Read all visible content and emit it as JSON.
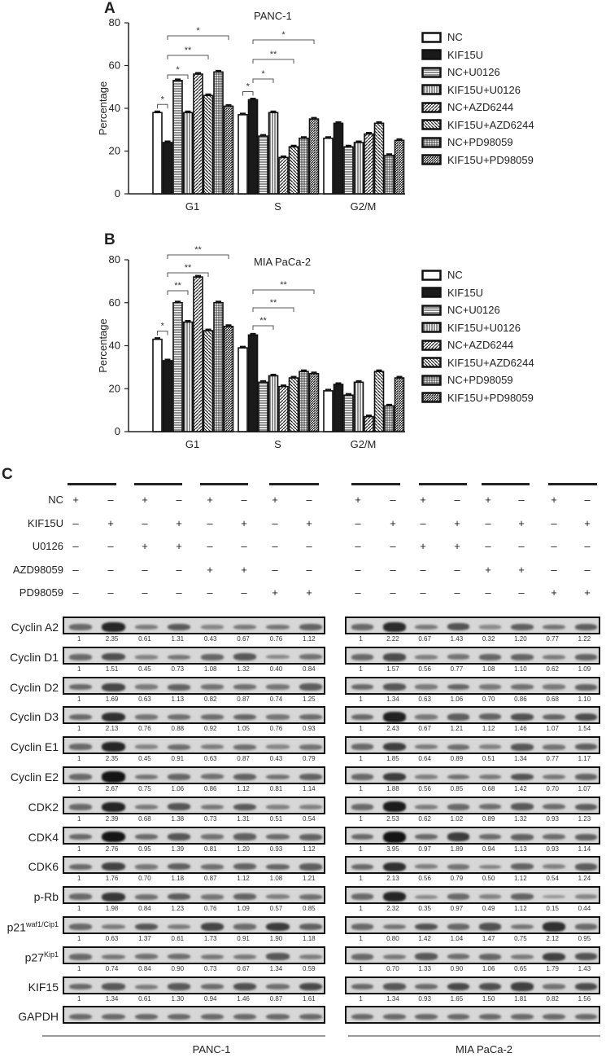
{
  "figure": {
    "panels": {
      "a": "A",
      "b": "B",
      "c": "C"
    }
  },
  "legend": [
    {
      "label": "NC",
      "pattern": "empty"
    },
    {
      "label": "KIF15U",
      "pattern": "solid"
    },
    {
      "label": "NC+U0126",
      "pattern": "hlines"
    },
    {
      "label": "KIF15U+U0126",
      "pattern": "vlines"
    },
    {
      "label": "NC+AZD6244",
      "pattern": "diag-up"
    },
    {
      "label": "KIF15U+AZD6244",
      "pattern": "diag-down"
    },
    {
      "label": "NC+PD98059",
      "pattern": "grid"
    },
    {
      "label": "KIF15U+PD98059",
      "pattern": "diag-dense"
    }
  ],
  "chart_data": [
    {
      "type": "bar",
      "title": "PANC-1",
      "panel": "A",
      "xlabel": "",
      "ylabel": "Percentage",
      "ylim": [
        0,
        80
      ],
      "yticks": [
        0,
        20,
        40,
        60,
        80
      ],
      "categories": [
        "G1",
        "S",
        "G2/M"
      ],
      "series": [
        {
          "name": "NC",
          "values": [
            38,
            37,
            26
          ]
        },
        {
          "name": "KIF15U",
          "values": [
            24,
            44,
            33
          ]
        },
        {
          "name": "NC+U0126",
          "values": [
            53,
            27,
            22
          ]
        },
        {
          "name": "KIF15U+U0126",
          "values": [
            38,
            38,
            24
          ]
        },
        {
          "name": "NC+AZD6244",
          "values": [
            56,
            17,
            28
          ]
        },
        {
          "name": "KIF15U+AZD6244",
          "values": [
            46,
            22,
            33
          ]
        },
        {
          "name": "NC+PD98059",
          "values": [
            57,
            26,
            18
          ]
        },
        {
          "name": "KIF15U+PD98059",
          "values": [
            41,
            35,
            25
          ]
        }
      ],
      "significance": [
        {
          "group": "G1",
          "from": 0,
          "to": 1,
          "label": "*"
        },
        {
          "group": "G1",
          "from": 1,
          "to": 3,
          "label": "*"
        },
        {
          "group": "G1",
          "from": 1,
          "to": 5,
          "label": "**"
        },
        {
          "group": "G1",
          "from": 1,
          "to": 7,
          "label": "*"
        },
        {
          "group": "S",
          "from": 0,
          "to": 1,
          "label": "*"
        },
        {
          "group": "S",
          "from": 1,
          "to": 3,
          "label": "*"
        },
        {
          "group": "S",
          "from": 1,
          "to": 5,
          "label": "**"
        },
        {
          "group": "S",
          "from": 1,
          "to": 7,
          "label": "*"
        }
      ],
      "grid": false,
      "legend_position": "right"
    },
    {
      "type": "bar",
      "title": "MIA PaCa-2",
      "panel": "B",
      "xlabel": "",
      "ylabel": "Percentage",
      "ylim": [
        0,
        80
      ],
      "yticks": [
        0,
        20,
        40,
        60,
        80
      ],
      "categories": [
        "G1",
        "S",
        "G2/M"
      ],
      "series": [
        {
          "name": "NC",
          "values": [
            43,
            39,
            19
          ]
        },
        {
          "name": "KIF15U",
          "values": [
            33,
            45,
            22
          ]
        },
        {
          "name": "NC+U0126",
          "values": [
            60,
            23,
            17
          ]
        },
        {
          "name": "KIF15U+U0126",
          "values": [
            51,
            26,
            23
          ]
        },
        {
          "name": "NC+AZD6244",
          "values": [
            72,
            21,
            7
          ]
        },
        {
          "name": "KIF15U+AZD6244",
          "values": [
            47,
            25,
            28
          ]
        },
        {
          "name": "NC+PD98059",
          "values": [
            60,
            28,
            12
          ]
        },
        {
          "name": "KIF15U+PD98059",
          "values": [
            49,
            27,
            25
          ]
        }
      ],
      "significance": [
        {
          "group": "G1",
          "from": 0,
          "to": 1,
          "label": "*"
        },
        {
          "group": "G1",
          "from": 1,
          "to": 3,
          "label": "**"
        },
        {
          "group": "G1",
          "from": 1,
          "to": 5,
          "label": "**"
        },
        {
          "group": "G1",
          "from": 1,
          "to": 7,
          "label": "**"
        },
        {
          "group": "S",
          "from": 1,
          "to": 3,
          "label": "**"
        },
        {
          "group": "S",
          "from": 1,
          "to": 5,
          "label": "**"
        },
        {
          "group": "S",
          "from": 1,
          "to": 7,
          "label": "**"
        }
      ],
      "grid": false,
      "legend_position": "right"
    },
    {
      "type": "table",
      "title": "Western blot relative quantification",
      "panel": "C",
      "conditions": {
        "rows": [
          "NC",
          "KIF15U",
          "U0126",
          "AZD98059",
          "PD98059"
        ],
        "lanes": [
          [
            "+",
            "-",
            "-",
            "-",
            "-"
          ],
          [
            "-",
            "+",
            "-",
            "-",
            "-"
          ],
          [
            "+",
            "-",
            "+",
            "-",
            "-"
          ],
          [
            "-",
            "+",
            "+",
            "-",
            "-"
          ],
          [
            "+",
            "-",
            "-",
            "+",
            "-"
          ],
          [
            "-",
            "+",
            "-",
            "+",
            "-"
          ],
          [
            "+",
            "-",
            "-",
            "-",
            "+"
          ],
          [
            "-",
            "+",
            "-",
            "-",
            "+"
          ]
        ]
      },
      "cell_lines": [
        "PANC-1",
        "MIA PaCa-2"
      ],
      "proteins": [
        {
          "name": "Cyclin A2",
          "sup": "",
          "panc1": [
            "1",
            "2.35",
            "0.61",
            "1.31",
            "0.43",
            "0.67",
            "0.76",
            "1.12"
          ],
          "mia": [
            "1",
            "2.22",
            "0.67",
            "1.43",
            "0.32",
            "1.20",
            "0.77",
            "1.22"
          ]
        },
        {
          "name": "Cyclin D1",
          "sup": "",
          "panc1": [
            "1",
            "1.51",
            "0.45",
            "0.73",
            "1.08",
            "1.32",
            "0.40",
            "0.84"
          ],
          "mia": [
            "1",
            "1.57",
            "0.56",
            "0.77",
            "1.08",
            "1.10",
            "0.62",
            "1.09"
          ]
        },
        {
          "name": "Cyclin D2",
          "sup": "",
          "panc1": [
            "1",
            "1.69",
            "0.63",
            "1.13",
            "0.82",
            "0.87",
            "0.74",
            "1.25"
          ],
          "mia": [
            "1",
            "1.34",
            "0.63",
            "1.06",
            "0.70",
            "0.86",
            "0.68",
            "1.10"
          ]
        },
        {
          "name": "Cyclin D3",
          "sup": "",
          "panc1": [
            "1",
            "2.13",
            "0.76",
            "0.88",
            "0.92",
            "1.05",
            "0.76",
            "0.93"
          ],
          "mia": [
            "1",
            "2.43",
            "0.67",
            "1.21",
            "1.12",
            "1.46",
            "1.07",
            "1.54"
          ]
        },
        {
          "name": "Cyclin E1",
          "sup": "",
          "panc1": [
            "1",
            "2.35",
            "0.45",
            "0.91",
            "0.63",
            "0.87",
            "0.43",
            "0.79"
          ],
          "mia": [
            "1",
            "1.85",
            "0.64",
            "0.89",
            "0.51",
            "1.34",
            "0.77",
            "1.17"
          ]
        },
        {
          "name": "Cyclin E2",
          "sup": "",
          "panc1": [
            "1",
            "2.67",
            "0.75",
            "1.06",
            "0.86",
            "1.12",
            "0.81",
            "1.14"
          ],
          "mia": [
            "1",
            "1.88",
            "0.56",
            "0.85",
            "0.68",
            "1.42",
            "0.70",
            "1.07"
          ]
        },
        {
          "name": "CDK2",
          "sup": "",
          "panc1": [
            "1",
            "2.39",
            "0.68",
            "1.38",
            "0.73",
            "1.31",
            "0.51",
            "0.54"
          ],
          "mia": [
            "1",
            "2.53",
            "0.62",
            "1.02",
            "0.89",
            "1.32",
            "0.93",
            "1.23"
          ]
        },
        {
          "name": "CDK4",
          "sup": "",
          "panc1": [
            "1",
            "2.76",
            "0.95",
            "1.39",
            "0.81",
            "1.20",
            "0.93",
            "1.12"
          ],
          "mia": [
            "1",
            "3.95",
            "0.97",
            "1.89",
            "0.94",
            "1.13",
            "0.93",
            "1.14"
          ]
        },
        {
          "name": "CDK6",
          "sup": "",
          "panc1": [
            "1",
            "1.76",
            "0.70",
            "1.18",
            "0.87",
            "1.12",
            "1.08",
            "1.21"
          ],
          "mia": [
            "1",
            "2.13",
            "0.56",
            "0.79",
            "0.50",
            "1.12",
            "0.54",
            "1.24"
          ]
        },
        {
          "name": "p-Rb",
          "sup": "",
          "panc1": [
            "1",
            "1.98",
            "0.84",
            "1.23",
            "0.76",
            "1.09",
            "0.57",
            "0.85"
          ],
          "mia": [
            "1",
            "2.32",
            "0.35",
            "0.97",
            "0.49",
            "1.12",
            "0.15",
            "0.44"
          ]
        },
        {
          "name": "p21",
          "sup": "waf1/Cip1",
          "panc1": [
            "1",
            "0.63",
            "1.37",
            "0.61",
            "1.73",
            "0.91",
            "1.90",
            "1.18"
          ],
          "mia": [
            "1",
            "0.80",
            "1.42",
            "1.04",
            "1.47",
            "0.75",
            "2.12",
            "0.95"
          ]
        },
        {
          "name": "p27",
          "sup": "Kip1",
          "panc1": [
            "1",
            "0.74",
            "0.84",
            "0.90",
            "0.73",
            "0.67",
            "1.34",
            "0.59"
          ],
          "mia": [
            "1",
            "0.70",
            "1.33",
            "0.90",
            "1.06",
            "0.65",
            "1.79",
            "1.43"
          ]
        },
        {
          "name": "KIF15",
          "sup": "",
          "panc1": [
            "1",
            "1.34",
            "0.61",
            "1.30",
            "0.94",
            "1.46",
            "0.87",
            "1.61"
          ],
          "mia": [
            "1",
            "1.34",
            "0.93",
            "1.65",
            "1.50",
            "1.81",
            "0.82",
            "1.56"
          ]
        },
        {
          "name": "GAPDH",
          "sup": "",
          "panc1": [],
          "mia": []
        }
      ]
    }
  ]
}
